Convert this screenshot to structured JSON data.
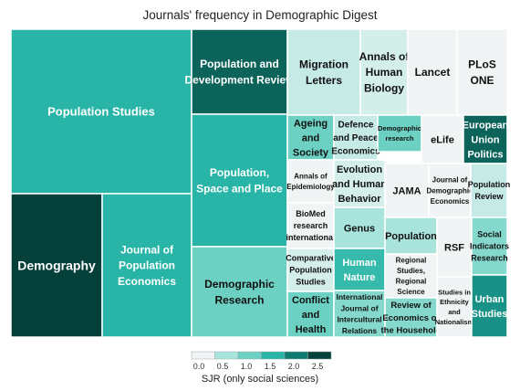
{
  "chart_data": {
    "type": "treemap",
    "title": "Journals' frequency in Demographic Digest",
    "color_scale": {
      "title": "SJR (only social sciences)",
      "ticks": [
        "0.0",
        "0.5",
        "1.0",
        "1.5",
        "2.0",
        "2.5"
      ],
      "colors": [
        "#f1f4f4",
        "#a9e4dc",
        "#6cd1c2",
        "#28b4a7",
        "#0f7a70",
        "#05403a"
      ]
    },
    "tiles": [
      {
        "name": "Population Studies",
        "lines": [
          "Population Studies"
        ],
        "sjr": 1.5
      },
      {
        "name": "Demography",
        "lines": [
          "Demography"
        ],
        "sjr": 2.5
      },
      {
        "name": "Journal of Population Economics",
        "lines": [
          "Journal of",
          "Population",
          "Economics"
        ],
        "sjr": 1.5
      },
      {
        "name": "Population and Development Review",
        "lines": [
          "Population and",
          "Development Review"
        ],
        "sjr": 2.2
      },
      {
        "name": "Population, Space and Place",
        "lines": [
          "Population,",
          "Space and Place"
        ],
        "sjr": 1.5
      },
      {
        "name": "Demographic Research",
        "lines": [
          "Demographic",
          "Research"
        ],
        "sjr": 1.0
      },
      {
        "name": "Migration Letters",
        "lines": [
          "Migration",
          "Letters"
        ],
        "sjr": 0.3
      },
      {
        "name": "Annals of Human Biology",
        "lines": [
          "Annals of",
          "Human",
          "Biology"
        ],
        "sjr": 0.2
      },
      {
        "name": "Lancet",
        "lines": [
          "Lancet"
        ],
        "sjr": 0.0
      },
      {
        "name": "PLoS ONE",
        "lines": [
          "PLoS",
          "ONE"
        ],
        "sjr": 0.0
      },
      {
        "name": "Ageing and Society",
        "lines": [
          "Ageing",
          "and",
          "Society"
        ],
        "sjr": 1.0
      },
      {
        "name": "Defence and Peace Economics",
        "lines": [
          "Defence",
          "and Peace",
          "Economics"
        ],
        "sjr": 0.3
      },
      {
        "name": "Demographic research",
        "lines": [
          "Demographic",
          "research"
        ],
        "sjr": 1.0
      },
      {
        "name": "eLife",
        "lines": [
          "eLife"
        ],
        "sjr": 0.0
      },
      {
        "name": "European Union Politics",
        "lines": [
          "European",
          "Union",
          "Politics"
        ],
        "sjr": 2.2
      },
      {
        "name": "Annals of Epidemiology",
        "lines": [
          "Annals of",
          "Epidemiology"
        ],
        "sjr": 0.0
      },
      {
        "name": "Evolution and Human Behavior",
        "lines": [
          "Evolution",
          "and Human",
          "Behavior"
        ],
        "sjr": 0.2
      },
      {
        "name": "JAMA",
        "lines": [
          "JAMA"
        ],
        "sjr": 0.0
      },
      {
        "name": "Journal of Demographic Economics",
        "lines": [
          "Journal of",
          "Demographic",
          "Economics"
        ],
        "sjr": 0.0
      },
      {
        "name": "Population Review",
        "lines": [
          "Population",
          "Review"
        ],
        "sjr": 0.3
      },
      {
        "name": "BioMed research international",
        "lines": [
          "BioMed",
          "research",
          "international"
        ],
        "sjr": 0.0
      },
      {
        "name": "Genus",
        "lines": [
          "Genus"
        ],
        "sjr": 0.5
      },
      {
        "name": "Population",
        "lines": [
          "Population"
        ],
        "sjr": 0.5
      },
      {
        "name": "RSF",
        "lines": [
          "RSF"
        ],
        "sjr": 0.0
      },
      {
        "name": "Social Indicators Research",
        "lines": [
          "Social",
          "Indicators",
          "Research"
        ],
        "sjr": 0.8
      },
      {
        "name": "Comparative Population Studies",
        "lines": [
          "Comparative",
          "Population",
          "Studies"
        ],
        "sjr": 0.2
      },
      {
        "name": "Human Nature",
        "lines": [
          "Human",
          "Nature"
        ],
        "sjr": 1.4
      },
      {
        "name": "Regional Studies, Regional Science",
        "lines": [
          "Regional",
          "Studies,",
          "Regional",
          "Science"
        ],
        "sjr": 0.0
      },
      {
        "name": "Conflict and Health",
        "lines": [
          "Conflict",
          "and",
          "Health"
        ],
        "sjr": 1.0
      },
      {
        "name": "International Journal of Intercultural Relations",
        "lines": [
          "International",
          "Journal of",
          "Intercultural",
          "Relations"
        ],
        "sjr": 0.8
      },
      {
        "name": "Review of Economics of the Household",
        "lines": [
          "Review of",
          "Economics of",
          "the Household"
        ],
        "sjr": 0.8
      },
      {
        "name": "Studies in Ethnicity and Nationalism",
        "lines": [
          "Studies in",
          "Ethnicity",
          "and",
          "Nationalism"
        ],
        "sjr": 0.0
      },
      {
        "name": "Urban Studies",
        "lines": [
          "Urban",
          "Studies"
        ],
        "sjr": 1.8
      }
    ]
  }
}
